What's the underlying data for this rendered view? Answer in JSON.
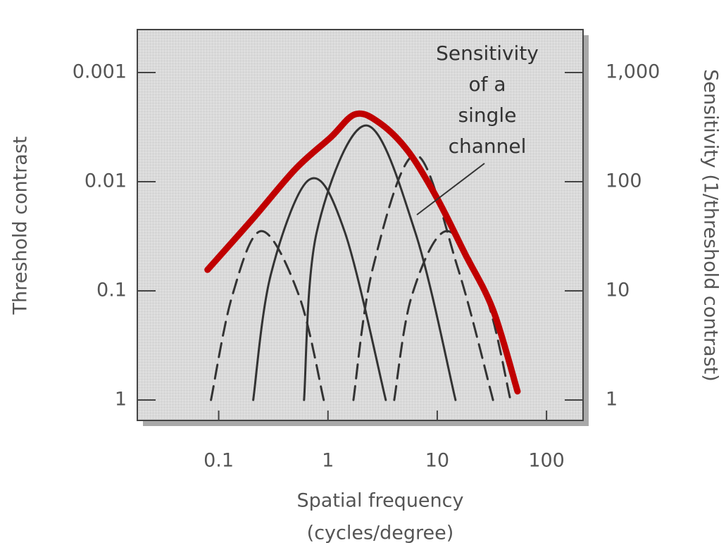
{
  "chart_data": {
    "type": "line",
    "xlabel": [
      "Spatial frequency",
      "(cycles/degree)"
    ],
    "ylabel": "Threshold contrast",
    "y2label": "Sensitivity (1/threshold contrast)",
    "annotation": [
      "Sensitivity",
      "of a",
      "single",
      "channel"
    ],
    "xscale": "log",
    "yscale": "log",
    "xlim": [
      0.018,
      216
    ],
    "xticks": [
      0.1,
      1,
      10,
      100
    ],
    "ylim": [
      1.54,
      0.000404
    ],
    "yticks": [
      0.001,
      0.01,
      0.1,
      1
    ],
    "y2lim": [
      0.65,
      2477
    ],
    "y2ticks": [
      {
        "value": 1000,
        "label": "1,000"
      },
      100,
      10,
      1
    ],
    "series": [
      {
        "color": "#333333",
        "style": "dashed",
        "axis": "y2",
        "x": [
          0.085,
          0.133,
          0.247,
          0.544,
          0.915
        ],
        "values": [
          1,
          9.0,
          35.3,
          9.0,
          1
        ]
      },
      {
        "color": "#333333",
        "style": "solid",
        "axis": "y2",
        "x": [
          0.207,
          0.3,
          0.68,
          1.43,
          3.38
        ],
        "values": [
          1,
          14.1,
          105,
          34.3,
          1
        ]
      },
      {
        "color": "#333333",
        "style": "solid",
        "axis": "y2",
        "x": [
          0.604,
          0.788,
          2.23,
          6.3,
          14.7
        ],
        "values": [
          1,
          34.3,
          328,
          34.3,
          1
        ]
      },
      {
        "color": "#333333",
        "style": "dashed",
        "axis": "y2",
        "x": [
          1.71,
          2.58,
          6.3,
          15.4,
          32.4
        ],
        "values": [
          1,
          16.3,
          176,
          16.3,
          1
        ]
      },
      {
        "color": "#333333",
        "style": "dashed",
        "axis": "y2",
        "x": [
          4.04,
          5.85,
          12.3,
          27.8,
          46.8
        ],
        "values": [
          1,
          9.0,
          35.3,
          9.0,
          1
        ]
      },
      {
        "color": "#c00000",
        "style": "envelope",
        "axis": "y2",
        "x": [
          0.079,
          0.207,
          0.505,
          1.06,
          1.79,
          3.0,
          5.44,
          9.86,
          17.9,
          32.4,
          54.3
        ],
        "values": [
          15.6,
          46.2,
          131,
          255,
          416,
          343,
          189,
          72,
          22,
          6.7,
          1.2
        ]
      }
    ]
  }
}
